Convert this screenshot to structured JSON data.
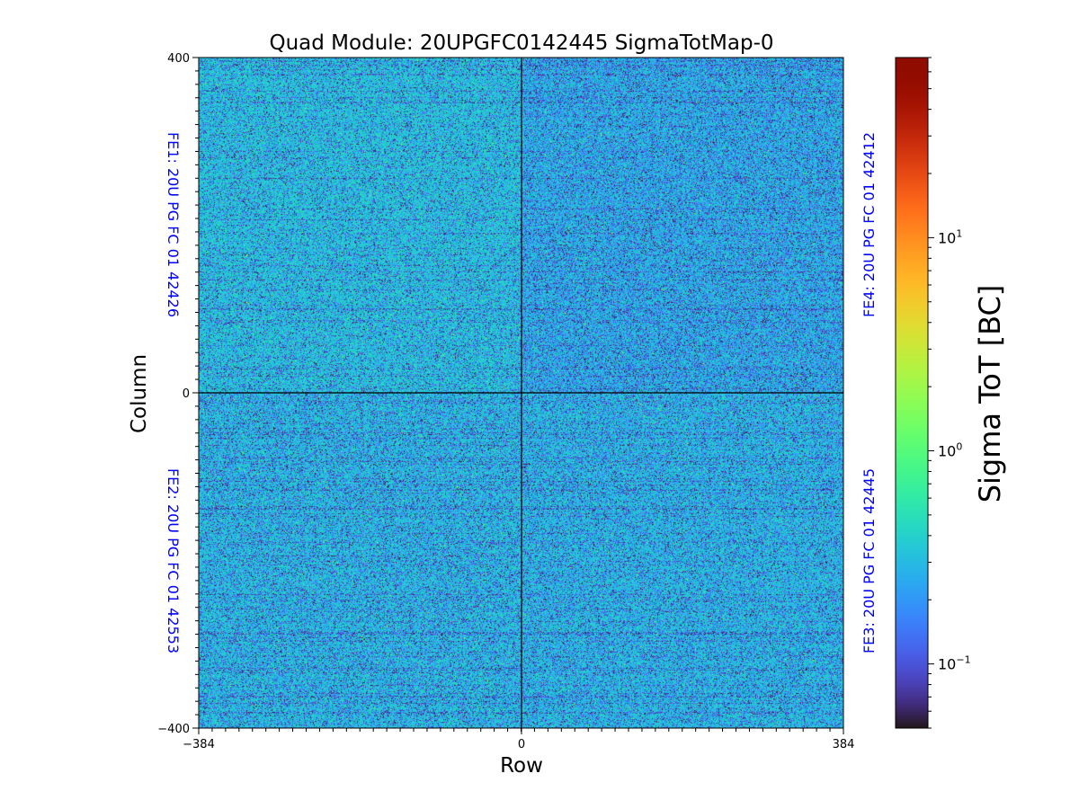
{
  "chart_data": {
    "type": "heatmap",
    "title": "Quad Module: 20UPGFC0142445 SigmaTotMap-0",
    "xlabel": "Row",
    "ylabel": "Column",
    "xlim": [
      -384,
      384
    ],
    "ylim": [
      -400,
      400
    ],
    "x_ticks": [
      "−384",
      "0",
      "384"
    ],
    "y_ticks": [
      "400",
      "0",
      "−400"
    ],
    "colormap": "turbo",
    "colorbar": {
      "label": "Sigma ToT [BC]",
      "scale": "log",
      "range": [
        0.05,
        70
      ],
      "ticks": [
        {
          "value": 10,
          "base": "10",
          "exp": "1"
        },
        {
          "value": 1,
          "base": "10",
          "exp": "0"
        },
        {
          "value": 0.1,
          "base": "10",
          "exp": "−1"
        }
      ]
    },
    "chips": [
      {
        "id": "FE1",
        "label": "FE1: 20U PG FC 01 42426",
        "quadrant": "top-left",
        "side": "left",
        "typical_sigma": 0.35,
        "dark_fraction": 0.16
      },
      {
        "id": "FE4",
        "label": "FE4: 20U PG FC 01 42412",
        "quadrant": "top-right",
        "side": "right",
        "typical_sigma": 0.3,
        "dark_fraction": 0.24
      },
      {
        "id": "FE2",
        "label": "FE2: 20U PG FC 01 42553",
        "quadrant": "bottom-left",
        "side": "left",
        "typical_sigma": 0.33,
        "dark_fraction": 0.2
      },
      {
        "id": "FE3",
        "label": "FE3: 20U PG FC 01 42445",
        "quadrant": "bottom-right",
        "side": "right",
        "typical_sigma": 0.32,
        "dark_fraction": 0.19
      }
    ],
    "annotation_color": "#0000ff"
  }
}
